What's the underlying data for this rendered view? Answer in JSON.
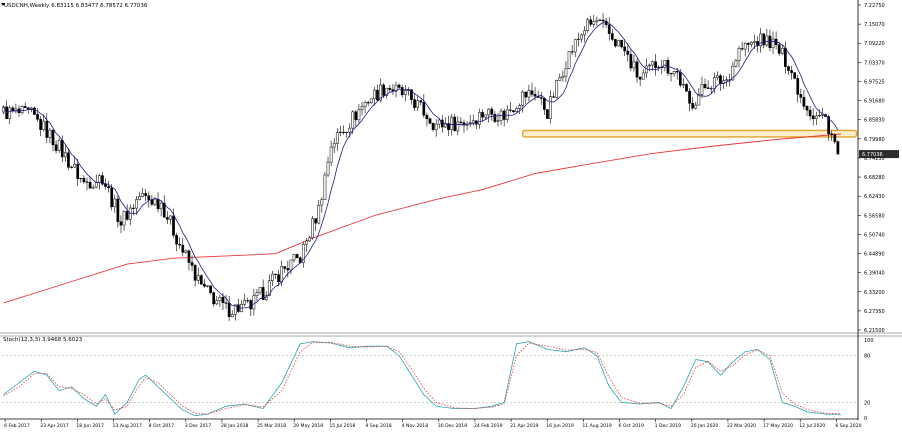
{
  "window": {
    "symbol_header": "USDCNH,Weekly  6.83115 6.83477 6.78572 6.77036"
  },
  "indicator": {
    "label": "Stoch(12,3,3) 3.9468 5.6023",
    "scale_labels": [
      "100",
      "80",
      "20",
      "0"
    ]
  },
  "colors": {
    "background": "#ffffff",
    "price_ma": "#1c1c8a",
    "long_ma": "#e8393a",
    "stoch_main": "#2aa6b8",
    "stoch_signal": "#e8393a",
    "zone_fill": "#fbe7b8",
    "zone_border": "#e0a42a",
    "current_price_bg": "#2c2c2c"
  },
  "chart_data": [
    {
      "type": "candlestick",
      "price_axis_labels": [
        "7.22750",
        "7.15070",
        "7.09220",
        "7.03370",
        "6.97525",
        "6.91680",
        "6.85830",
        "6.79980",
        "6.74130",
        "6.68280",
        "6.62430",
        "6.56580",
        "6.50740",
        "6.44890",
        "6.39040",
        "6.33200",
        "6.27350",
        "6.21500"
      ],
      "current_price_label": "6.77036",
      "x_labels": [
        "6 Feb 2017",
        "23 Apr 2017",
        "18 Jun 2017",
        "13 Aug 2017",
        "8 Oct 2017",
        "3 Dec 2017",
        "28 Jan 2018",
        "25 Mar 2018",
        "20 May 2018",
        "15 Jul 2018",
        "9 Sep 2018",
        "4 Nov 2018",
        "30 Dec 2018",
        "24 Feb 2019",
        "21 Apr 2019",
        "16 Jun 2019",
        "11 Aug 2019",
        "6 Oct 2019",
        "1 Dec 2019",
        "26 Jan 2020",
        "22 Mar 2020",
        "17 May 2020",
        "12 Jul 2020",
        "6 Sep 2020"
      ],
      "ylim": [
        6.22,
        7.24
      ],
      "close_path": [
        [
          0,
          6.9
        ],
        [
          9,
          6.89
        ],
        [
          14,
          6.84
        ],
        [
          18,
          6.79
        ],
        [
          26,
          6.68
        ],
        [
          32,
          6.7
        ],
        [
          38,
          6.56
        ],
        [
          44,
          6.64
        ],
        [
          51,
          6.62
        ],
        [
          58,
          6.47
        ],
        [
          64,
          6.36
        ],
        [
          72,
          6.29
        ],
        [
          80,
          6.3
        ],
        [
          90,
          6.41
        ],
        [
          96,
          6.45
        ],
        [
          102,
          6.6
        ],
        [
          106,
          6.8
        ],
        [
          112,
          6.87
        ],
        [
          118,
          6.94
        ],
        [
          124,
          6.98
        ],
        [
          132,
          6.94
        ],
        [
          140,
          6.86
        ],
        [
          150,
          6.87
        ],
        [
          156,
          6.9
        ],
        [
          162,
          6.89
        ],
        [
          168,
          6.95
        ],
        [
          172,
          6.96
        ],
        [
          176,
          6.9
        ],
        [
          182,
          7.06
        ],
        [
          188,
          7.16
        ],
        [
          192,
          7.18
        ],
        [
          196,
          7.14
        ],
        [
          200,
          7.1
        ],
        [
          206,
          7.0
        ],
        [
          212,
          7.06
        ],
        [
          218,
          7.02
        ],
        [
          222,
          6.92
        ],
        [
          228,
          6.99
        ],
        [
          234,
          7.0
        ],
        [
          238,
          7.09
        ],
        [
          244,
          7.12
        ],
        [
          248,
          7.12
        ],
        [
          254,
          7.05
        ],
        [
          258,
          6.95
        ],
        [
          262,
          6.89
        ],
        [
          266,
          6.88
        ],
        [
          268,
          6.83
        ],
        [
          270,
          6.77
        ]
      ],
      "series": [
        {
          "name": "MA 200",
          "values": [
            [
              0,
              6.31
            ],
            [
              20,
              6.37
            ],
            [
              40,
              6.43
            ],
            [
              55,
              6.448
            ],
            [
              75,
              6.456
            ],
            [
              88,
              6.462
            ],
            [
              100,
              6.51
            ],
            [
              120,
              6.58
            ],
            [
              140,
              6.63
            ],
            [
              155,
              6.66
            ],
            [
              172,
              6.71
            ],
            [
              190,
              6.74
            ],
            [
              210,
              6.772
            ],
            [
              230,
              6.795
            ],
            [
              250,
              6.815
            ],
            [
              271,
              6.832
            ]
          ]
        }
      ],
      "annotation": {
        "type": "support_zone",
        "from_index": 168,
        "to_index": 276,
        "low": 6.823,
        "high": 6.843
      }
    },
    {
      "type": "line",
      "title": "Stoch(12,3,3) 3.9468 5.6023",
      "ylim": [
        0,
        100
      ],
      "levels": [
        80,
        20
      ],
      "series": [
        {
          "name": "Main",
          "values": [
            [
              0,
              30
            ],
            [
              5,
              45
            ],
            [
              10,
              60
            ],
            [
              14,
              55
            ],
            [
              18,
              35
            ],
            [
              22,
              40
            ],
            [
              26,
              25
            ],
            [
              30,
              15
            ],
            [
              33,
              30
            ],
            [
              36,
              5
            ],
            [
              40,
              20
            ],
            [
              44,
              50
            ],
            [
              46,
              55
            ],
            [
              50,
              40
            ],
            [
              54,
              25
            ],
            [
              58,
              10
            ],
            [
              62,
              3
            ],
            [
              66,
              5
            ],
            [
              72,
              15
            ],
            [
              78,
              18
            ],
            [
              84,
              12
            ],
            [
              90,
              45
            ],
            [
              96,
              95
            ],
            [
              100,
              98
            ],
            [
              106,
              96
            ],
            [
              112,
              90
            ],
            [
              118,
              92
            ],
            [
              124,
              92
            ],
            [
              128,
              80
            ],
            [
              132,
              55
            ],
            [
              136,
              30
            ],
            [
              140,
              15
            ],
            [
              146,
              12
            ],
            [
              152,
              12
            ],
            [
              158,
              15
            ],
            [
              162,
              20
            ],
            [
              166,
              95
            ],
            [
              170,
              98
            ],
            [
              176,
              88
            ],
            [
              182,
              85
            ],
            [
              188,
              90
            ],
            [
              192,
              80
            ],
            [
              196,
              40
            ],
            [
              200,
              20
            ],
            [
              206,
              18
            ],
            [
              212,
              20
            ],
            [
              216,
              12
            ],
            [
              220,
              40
            ],
            [
              224,
              75
            ],
            [
              228,
              72
            ],
            [
              232,
              55
            ],
            [
              236,
              72
            ],
            [
              240,
              85
            ],
            [
              244,
              88
            ],
            [
              248,
              75
            ],
            [
              252,
              20
            ],
            [
              256,
              15
            ],
            [
              260,
              8
            ],
            [
              266,
              5
            ],
            [
              271,
              4
            ]
          ]
        },
        {
          "name": "Signal",
          "values": [
            [
              0,
              28
            ],
            [
              5,
              40
            ],
            [
              10,
              57
            ],
            [
              14,
              57
            ],
            [
              18,
              40
            ],
            [
              22,
              38
            ],
            [
              26,
              30
            ],
            [
              30,
              18
            ],
            [
              33,
              25
            ],
            [
              36,
              10
            ],
            [
              40,
              15
            ],
            [
              44,
              42
            ],
            [
              46,
              52
            ],
            [
              50,
              45
            ],
            [
              54,
              30
            ],
            [
              58,
              15
            ],
            [
              62,
              6
            ],
            [
              66,
              5
            ],
            [
              72,
              12
            ],
            [
              78,
              17
            ],
            [
              84,
              14
            ],
            [
              90,
              35
            ],
            [
              96,
              85
            ],
            [
              100,
              97
            ],
            [
              106,
              97
            ],
            [
              112,
              92
            ],
            [
              118,
              91
            ],
            [
              124,
              92
            ],
            [
              128,
              85
            ],
            [
              132,
              63
            ],
            [
              136,
              38
            ],
            [
              140,
              20
            ],
            [
              146,
              13
            ],
            [
              152,
              12
            ],
            [
              158,
              14
            ],
            [
              162,
              18
            ],
            [
              166,
              80
            ],
            [
              170,
              96
            ],
            [
              176,
              92
            ],
            [
              182,
              87
            ],
            [
              188,
              88
            ],
            [
              192,
              84
            ],
            [
              196,
              52
            ],
            [
              200,
              26
            ],
            [
              206,
              19
            ],
            [
              212,
              19
            ],
            [
              216,
              15
            ],
            [
              220,
              30
            ],
            [
              224,
              65
            ],
            [
              228,
              73
            ],
            [
              232,
              60
            ],
            [
              236,
              67
            ],
            [
              240,
              81
            ],
            [
              244,
              87
            ],
            [
              248,
              80
            ],
            [
              252,
              32
            ],
            [
              256,
              18
            ],
            [
              260,
              11
            ],
            [
              266,
              6
            ],
            [
              271,
              5.6
            ]
          ]
        }
      ]
    }
  ]
}
